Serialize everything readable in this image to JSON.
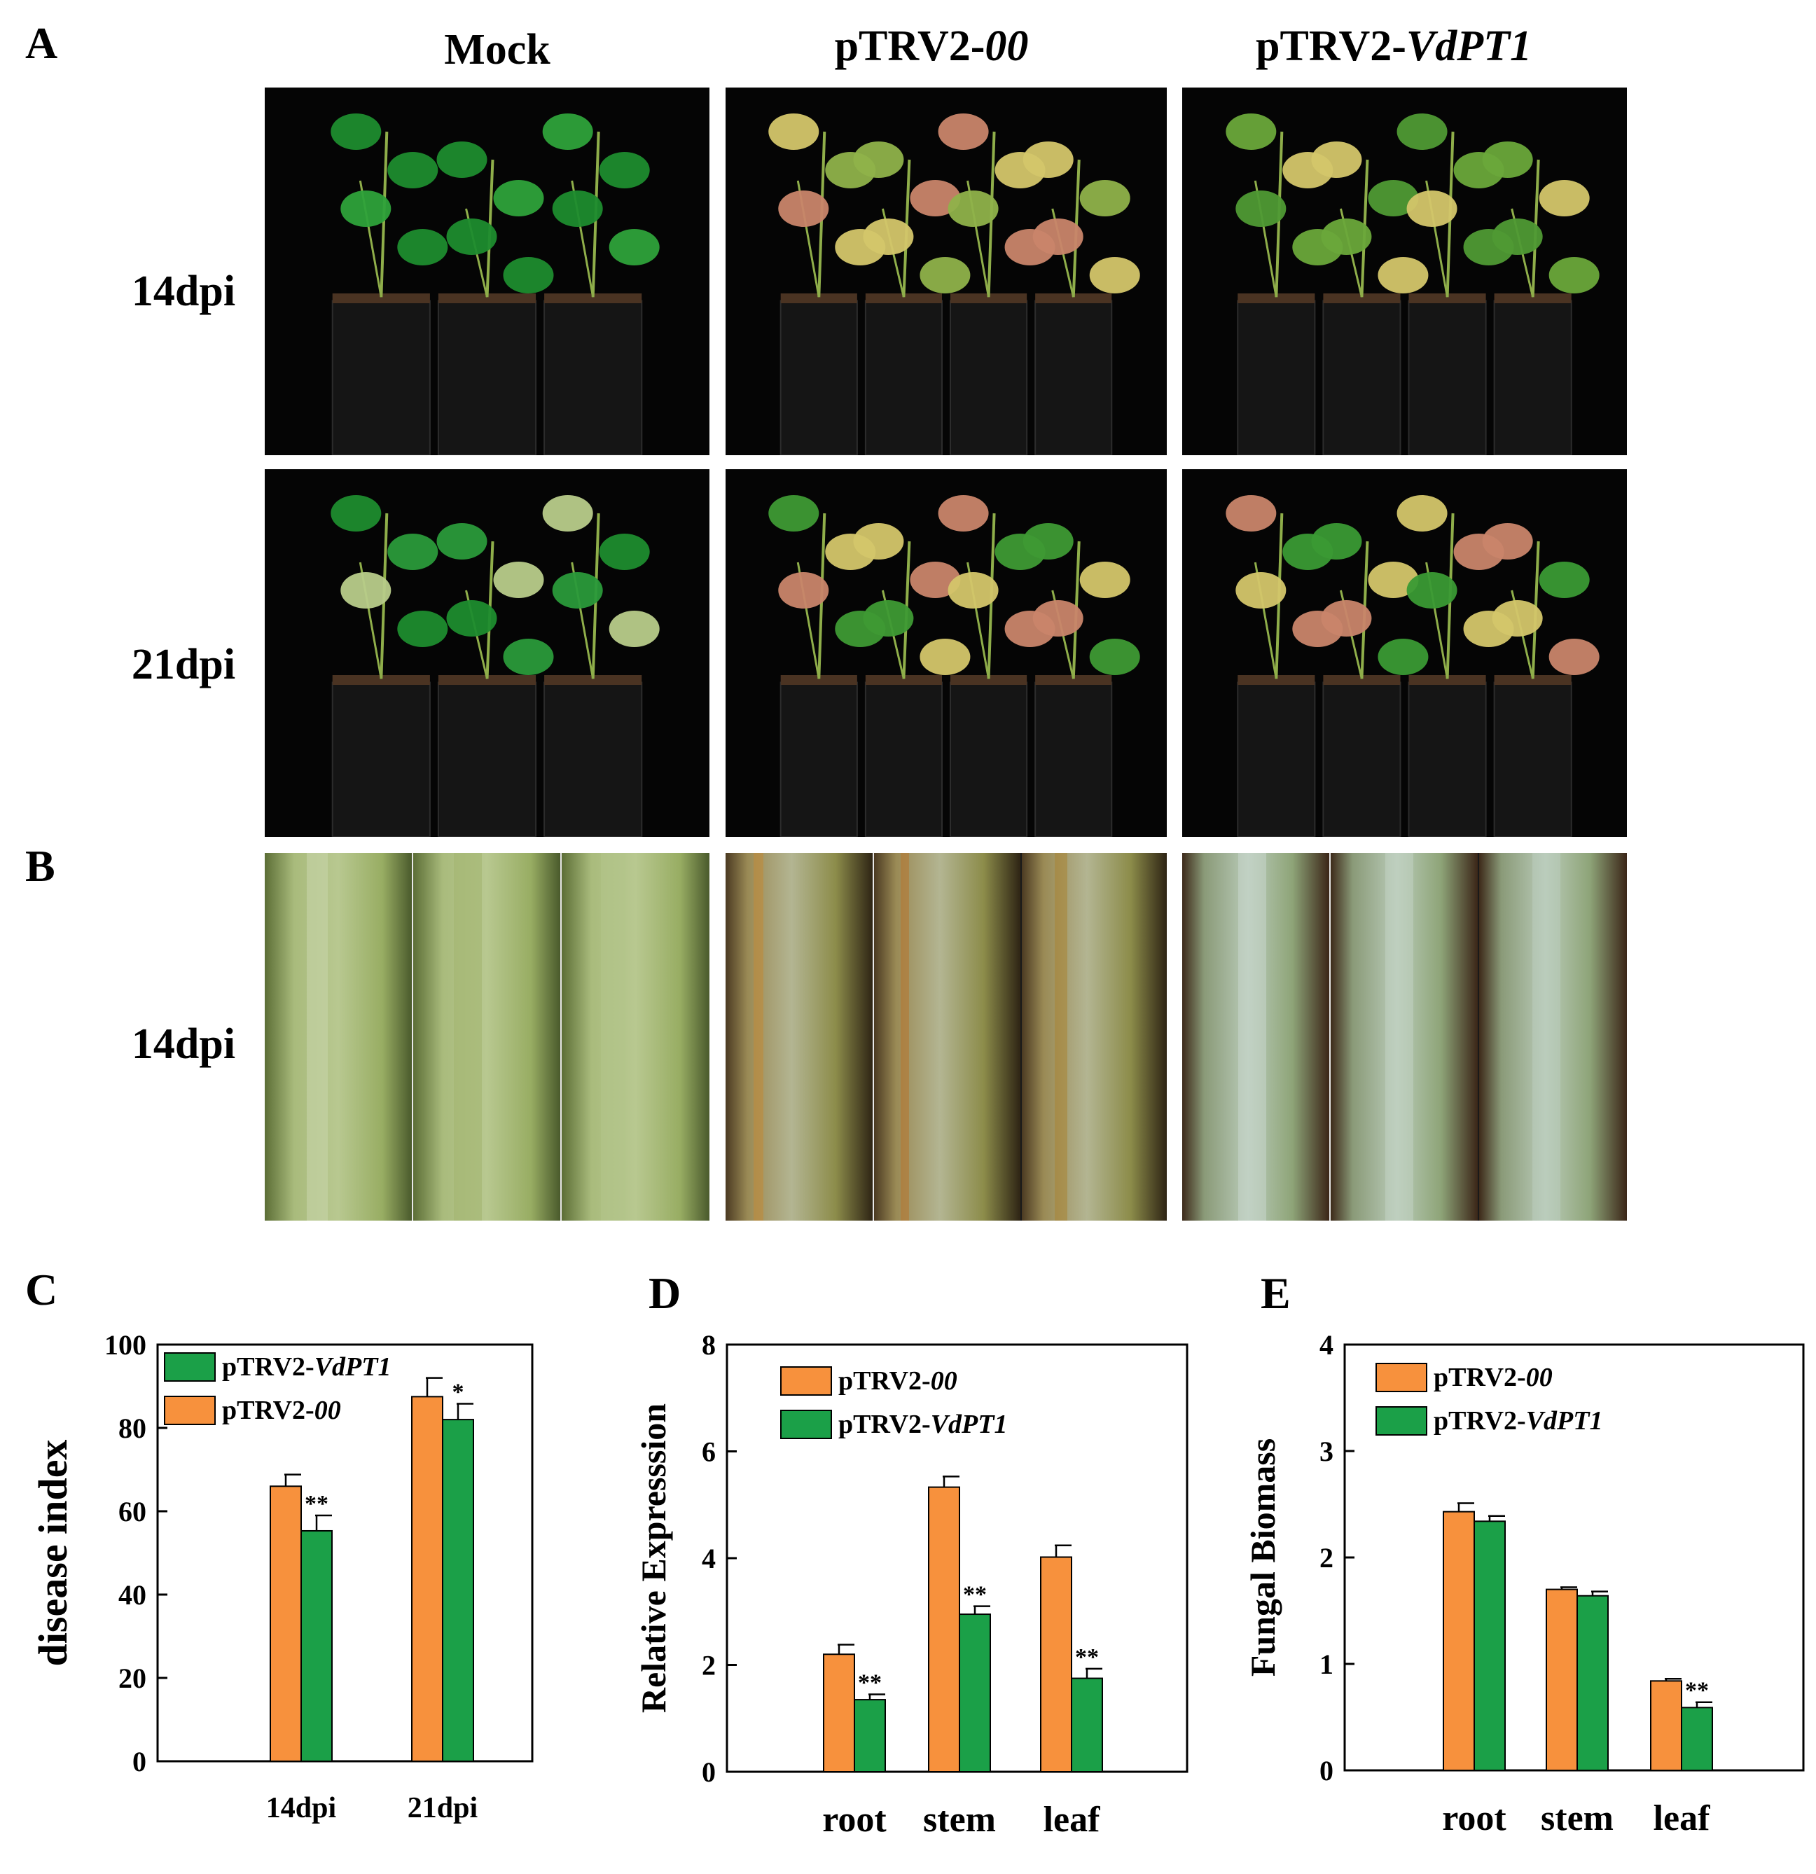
{
  "panels": {
    "A": "A",
    "B": "B",
    "C": "C",
    "D": "D",
    "E": "E"
  },
  "columns": {
    "mock": "Mock",
    "empty_prefix": "pTRV2-",
    "empty_suffix": "00",
    "target_prefix": "pTRV2-",
    "target_suffix": "VdPT1"
  },
  "rows": {
    "a_row1": "14dpi",
    "a_row2": "21dpi",
    "b_row1": "14dpi"
  },
  "colors": {
    "empty_vector": "#F7913D",
    "target": "#1BA048",
    "photo_bg": "#050505",
    "leaf_healthy": "#1E8C2E",
    "leaf_wilted": "#D4C66A",
    "leaf_necrotic": "#C9856A"
  },
  "chart_data": [
    {
      "panel": "C",
      "type": "bar",
      "ylabel": "disease index",
      "xlabel": "",
      "ylim": [
        0,
        100
      ],
      "yticks": [
        "0",
        "20",
        "40",
        "60",
        "80",
        "100"
      ],
      "categories": [
        "14dpi",
        "21dpi"
      ],
      "legend_order": [
        "target",
        "empty"
      ],
      "legend": {
        "target_prefix": "pTRV2-",
        "target_suffix": "VdPT1",
        "empty_prefix": "pTRV2-",
        "empty_suffix": "00"
      },
      "series": [
        {
          "key": "empty",
          "values": [
            66,
            87.5
          ],
          "errors": [
            2.8,
            4.5
          ],
          "sig": [
            "",
            ""
          ]
        },
        {
          "key": "target",
          "values": [
            55.3,
            82
          ],
          "errors": [
            3.7,
            3.8
          ],
          "sig": [
            "**",
            "*"
          ]
        }
      ]
    },
    {
      "panel": "D",
      "type": "bar",
      "ylabel": "Relative Expresssion",
      "xlabel": "",
      "ylim": [
        0,
        8
      ],
      "yticks": [
        "0",
        "2",
        "4",
        "6",
        "8"
      ],
      "categories": [
        "root",
        "stem",
        "leaf"
      ],
      "legend_order": [
        "empty",
        "target"
      ],
      "legend": {
        "target_prefix": "pTRV2-",
        "target_suffix": "VdPT1",
        "empty_prefix": "pTRV2-",
        "empty_suffix": "00"
      },
      "series": [
        {
          "key": "empty",
          "values": [
            2.2,
            5.33,
            4.02
          ],
          "errors": [
            0.18,
            0.2,
            0.22
          ],
          "sig": [
            "",
            "",
            ""
          ]
        },
        {
          "key": "target",
          "values": [
            1.35,
            2.95,
            1.75
          ],
          "errors": [
            0.1,
            0.15,
            0.18
          ],
          "sig": [
            "**",
            "**",
            "**"
          ]
        }
      ]
    },
    {
      "panel": "E",
      "type": "bar",
      "ylabel": "Fungal Biomass",
      "xlabel": "",
      "ylim": [
        0,
        4
      ],
      "yticks": [
        "0",
        "1",
        "2",
        "3",
        "4"
      ],
      "categories": [
        "root",
        "stem",
        "leaf"
      ],
      "legend_order": [
        "empty",
        "target"
      ],
      "legend": {
        "target_prefix": "pTRV2-",
        "target_suffix": "VdPT1",
        "empty_prefix": "pTRV2-",
        "empty_suffix": "00"
      },
      "series": [
        {
          "key": "empty",
          "values": [
            2.43,
            1.7,
            0.84
          ],
          "errors": [
            0.08,
            0.02,
            0.02
          ],
          "sig": [
            "",
            "",
            ""
          ]
        },
        {
          "key": "target",
          "values": [
            2.34,
            1.64,
            0.59
          ],
          "errors": [
            0.05,
            0.04,
            0.05
          ],
          "sig": [
            "",
            "",
            "**"
          ]
        }
      ]
    }
  ]
}
